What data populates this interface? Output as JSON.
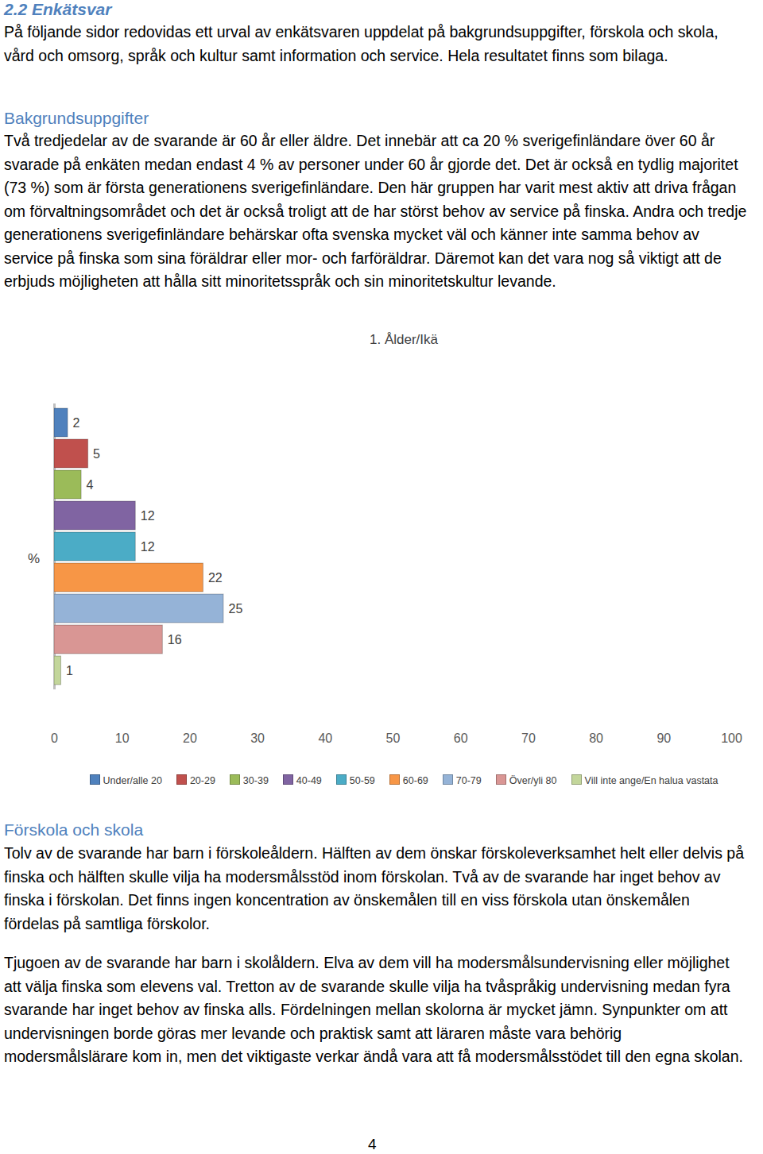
{
  "heading": "2.2 Enkätsvar",
  "intro": "På följande sidor redovidas ett urval av enkätsvaren uppdelat på bakgrundsuppgifter, förskola och skola, vård och omsorg, språk och kultur samt information och service. Hela resultatet finns som bilaga.",
  "sections": [
    {
      "heading": "Bakgrundsuppgifter",
      "paragraphs": [
        "Två tredjedelar av de svarande är 60 år eller äldre. Det innebär att ca 20 % sverigefinländare över 60 år svarade på enkäten medan endast 4 % av personer under 60 år gjorde det. Det är också en tydlig majoritet (73 %) som är första generationens sverigefinländare. Den här gruppen har varit mest aktiv att driva frågan om förvaltningsområdet och det är också troligt att de har störst behov av service på finska. Andra och tredje generationens sverigefinländare behärskar ofta svenska mycket väl och känner inte samma behov av service på finska som sina föräldrar eller mor- och farföräldrar. Däremot kan det vara nog så viktigt att de erbjuds möjligheten att hålla sitt minoritetsspråk och sin minoritetskultur levande."
      ]
    },
    {
      "heading": "Förskola och skola",
      "paragraphs": [
        "Tolv av de svarande har barn i förskoleåldern. Hälften av dem önskar förskoleverksamhet helt eller delvis på finska och hälften skulle vilja ha modersmålsstöd inom förskolan. Två av de svarande har inget behov av finska i förskolan. Det finns ingen koncentration av önskemålen till en viss förskola utan önskemålen fördelas på samtliga förskolor.",
        "Tjugoen av de svarande har barn i skolåldern. Elva av dem vill ha modersmålsundervisning eller möjlighet att välja finska som elevens val. Tretton av de svarande skulle vilja ha tvåspråkig undervisning medan fyra svarande har inget behov av finska alls. Fördelningen mellan skolorna är mycket jämn. Synpunkter om att undervisningen borde göras mer levande och praktisk samt att läraren måste vara behörig modersmålslärare kom in, men det viktigaste verkar ändå vara att få modersmålsstödet till den egna skolan."
      ]
    }
  ],
  "page_number": "4",
  "chart_data": {
    "type": "bar",
    "orientation": "horizontal",
    "title": "1. Ålder/Ikä",
    "y_label": "%",
    "categories": [
      "Under/alle 20",
      "20-29",
      "30-39",
      "40-49",
      "50-59",
      "60-69",
      "70-79",
      "Över/yli 80",
      "Vill inte ange/En halua vastata"
    ],
    "values": [
      2,
      5,
      4,
      12,
      12,
      22,
      25,
      16,
      1
    ],
    "colors": [
      "#4f81bd",
      "#c0504d",
      "#9bbb59",
      "#8064a2",
      "#4bacc6",
      "#f79646",
      "#95b3d7",
      "#d99694",
      "#c3d69b"
    ],
    "xlim": [
      0,
      100
    ],
    "xticks": [
      0,
      10,
      20,
      30,
      40,
      50,
      60,
      70,
      80,
      90,
      100
    ],
    "data_labels": true,
    "tick_labels": "x",
    "grid": false,
    "legend": "bottom"
  }
}
